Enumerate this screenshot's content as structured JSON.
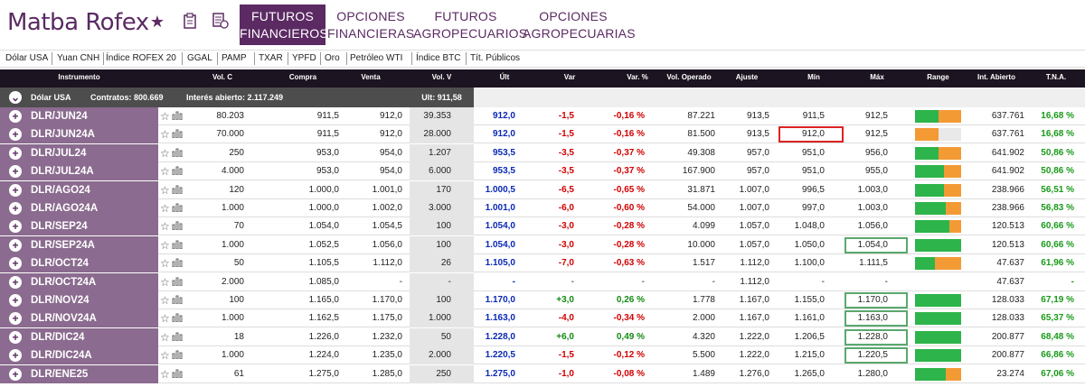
{
  "logo": "Matba Rofex",
  "nav": {
    "tabs": [
      {
        "l1": "FUTUROS",
        "l2": "FINANCIEROS",
        "active": true
      },
      {
        "l1": "OPCIONES",
        "l2": "FINANCIERAS",
        "active": false
      },
      {
        "l1": "FUTUROS",
        "l2": "AGROPECUARIOS",
        "active": false
      },
      {
        "l1": "OPCIONES",
        "l2": "AGROPECUARIAS",
        "active": false
      }
    ],
    "icons": [
      "star-icon",
      "clipboard-icon",
      "ledger-icon"
    ]
  },
  "subnav": [
    "Dólar USA",
    "Yuan CNH",
    "Índice ROFEX 20",
    "GGAL",
    "PAMP",
    "TXAR",
    "YPFD",
    "Oro",
    "Petróleo WTI",
    "Índice BTC",
    "Tít. Públicos"
  ],
  "headers": [
    "Instrumento",
    "Vol. C",
    "Compra",
    "Venta",
    "Vol. V",
    "Últ",
    "Var",
    "Var. %",
    "Vol. Operado",
    "Ajuste",
    "Mín",
    "Máx",
    "Range",
    "Int. Abierto",
    "T.N.A."
  ],
  "group": {
    "name": "Dólar USA",
    "contratos": "Contratos: 800.669",
    "interes": "Interés abierto: 2.117.249",
    "ult": "Ult: 911,58"
  },
  "rows": [
    {
      "inst": "DLR/JUN24",
      "volc": "80.203",
      "compra": "911,5",
      "venta": "912,0",
      "volv": "39.353",
      "ult": "912,0",
      "var": "-1,5",
      "varp": "-0,16 %",
      "volop": "87.221",
      "ajuste": "913,5",
      "min": "911,5",
      "max": "912,5",
      "range_low": 0.5,
      "range_high": 0.5,
      "intab": "637.761",
      "tna": "16,68 %",
      "box": ""
    },
    {
      "inst": "DLR/JUN24A",
      "volc": "70.000",
      "compra": "911,5",
      "venta": "912,0",
      "volv": "28.000",
      "ult": "912,0",
      "var": "-1,5",
      "varp": "-0,16 %",
      "volop": "81.500",
      "ajuste": "913,5",
      "min": "912,0",
      "max": "912,5",
      "range_low": 0.0,
      "range_high": 0.5,
      "intab": "637.761",
      "tna": "16,68 %",
      "box": "min-red"
    },
    {
      "inst": "DLR/JUL24",
      "volc": "250",
      "compra": "953,0",
      "venta": "954,0",
      "volv": "1.207",
      "ult": "953,5",
      "var": "-3,5",
      "varp": "-0,37 %",
      "volop": "49.308",
      "ajuste": "957,0",
      "min": "951,0",
      "max": "956,0",
      "range_low": 0.5,
      "range_high": 0.5,
      "intab": "641.902",
      "tna": "50,86 %",
      "box": ""
    },
    {
      "inst": "DLR/JUL24A",
      "volc": "4.000",
      "compra": "953,0",
      "venta": "954,0",
      "volv": "6.000",
      "ult": "953,5",
      "var": "-3,5",
      "varp": "-0,37 %",
      "volop": "167.900",
      "ajuste": "957,0",
      "min": "951,0",
      "max": "955,0",
      "range_low": 0.62,
      "range_high": 0.38,
      "intab": "641.902",
      "tna": "50,86 %",
      "box": ""
    },
    {
      "inst": "DLR/AGO24",
      "volc": "120",
      "compra": "1.000,0",
      "venta": "1.001,0",
      "volv": "170",
      "ult": "1.000,5",
      "var": "-6,5",
      "varp": "-0,65 %",
      "volop": "31.871",
      "ajuste": "1.007,0",
      "min": "996,5",
      "max": "1.003,0",
      "range_low": 0.63,
      "range_high": 0.37,
      "intab": "238.966",
      "tna": "56,51 %",
      "box": ""
    },
    {
      "inst": "DLR/AGO24A",
      "volc": "1.000",
      "compra": "1.000,0",
      "venta": "1.002,0",
      "volv": "3.000",
      "ult": "1.001,0",
      "var": "-6,0",
      "varp": "-0,60 %",
      "volop": "54.000",
      "ajuste": "1.007,0",
      "min": "997,0",
      "max": "1.003,0",
      "range_low": 0.66,
      "range_high": 0.34,
      "intab": "238.966",
      "tna": "56,83 %",
      "box": ""
    },
    {
      "inst": "DLR/SEP24",
      "volc": "70",
      "compra": "1.054,0",
      "venta": "1.054,5",
      "volv": "100",
      "ult": "1.054,0",
      "var": "-3,0",
      "varp": "-0,28 %",
      "volop": "4.099",
      "ajuste": "1.057,0",
      "min": "1.048,0",
      "max": "1.056,0",
      "range_low": 0.75,
      "range_high": 0.25,
      "intab": "120.513",
      "tna": "60,66 %",
      "box": ""
    },
    {
      "inst": "DLR/SEP24A",
      "volc": "1.000",
      "compra": "1.052,5",
      "venta": "1.056,0",
      "volv": "100",
      "ult": "1.054,0",
      "var": "-3,0",
      "varp": "-0,28 %",
      "volop": "10.000",
      "ajuste": "1.057,0",
      "min": "1.050,0",
      "max": "1.054,0",
      "range_low": 1.0,
      "range_high": 0.0,
      "intab": "120.513",
      "tna": "60,66 %",
      "box": "max-green"
    },
    {
      "inst": "DLR/OCT24",
      "volc": "50",
      "compra": "1.105,5",
      "venta": "1.112,0",
      "volv": "26",
      "ult": "1.105,0",
      "var": "-7,0",
      "varp": "-0,63 %",
      "volop": "1.517",
      "ajuste": "1.112,0",
      "min": "1.100,0",
      "max": "1.111,5",
      "range_low": 0.43,
      "range_high": 0.57,
      "intab": "47.637",
      "tna": "61,96 %",
      "box": ""
    },
    {
      "inst": "DLR/OCT24A",
      "volc": "2.000",
      "compra": "1.085,0",
      "venta": "-",
      "volv": "-",
      "ult": "-",
      "var": "-",
      "varp": "-",
      "volop": "-",
      "ajuste": "1.112,0",
      "min": "-",
      "max": "-",
      "range_low": 0,
      "range_high": 0,
      "intab": "47.637",
      "tna": "-",
      "box": ""
    },
    {
      "inst": "DLR/NOV24",
      "volc": "100",
      "compra": "1.165,0",
      "venta": "1.170,0",
      "volv": "100",
      "ult": "1.170,0",
      "var": "+3,0",
      "varp": "0,26 %",
      "volop": "1.778",
      "ajuste": "1.167,0",
      "min": "1.155,0",
      "max": "1.170,0",
      "range_low": 1.0,
      "range_high": 0.0,
      "intab": "128.033",
      "tna": "67,19 %",
      "box": "max-green"
    },
    {
      "inst": "DLR/NOV24A",
      "volc": "1.000",
      "compra": "1.162,5",
      "venta": "1.175,0",
      "volv": "1.000",
      "ult": "1.163,0",
      "var": "-4,0",
      "varp": "-0,34 %",
      "volop": "2.000",
      "ajuste": "1.167,0",
      "min": "1.161,0",
      "max": "1.163,0",
      "range_low": 1.0,
      "range_high": 0.0,
      "intab": "128.033",
      "tna": "65,37 %",
      "box": "max-green"
    },
    {
      "inst": "DLR/DIC24",
      "volc": "18",
      "compra": "1.226,0",
      "venta": "1.232,0",
      "volv": "50",
      "ult": "1.228,0",
      "var": "+6,0",
      "varp": "0,49 %",
      "volop": "4.320",
      "ajuste": "1.222,0",
      "min": "1.206,5",
      "max": "1.228,0",
      "range_low": 1.0,
      "range_high": 0.0,
      "intab": "200.877",
      "tna": "68,48 %",
      "box": "max-green"
    },
    {
      "inst": "DLR/DIC24A",
      "volc": "1.000",
      "compra": "1.224,0",
      "venta": "1.235,0",
      "volv": "2.000",
      "ult": "1.220,5",
      "var": "-1,5",
      "varp": "-0,12 %",
      "volop": "5.500",
      "ajuste": "1.222,0",
      "min": "1.215,0",
      "max": "1.220,5",
      "range_low": 1.0,
      "range_high": 0.0,
      "intab": "200.877",
      "tna": "66,86 %",
      "box": "max-green"
    },
    {
      "inst": "DLR/ENE25",
      "volc": "61",
      "compra": "1.275,0",
      "venta": "1.285,0",
      "volv": "250",
      "ult": "1.275,0",
      "var": "-1,0",
      "varp": "-0,08 %",
      "volop": "1.489",
      "ajuste": "1.276,0",
      "min": "1.265,0",
      "max": "1.280,0",
      "range_low": 0.66,
      "range_high": 0.34,
      "intab": "23.274",
      "tna": "67,06 %",
      "box": ""
    }
  ]
}
